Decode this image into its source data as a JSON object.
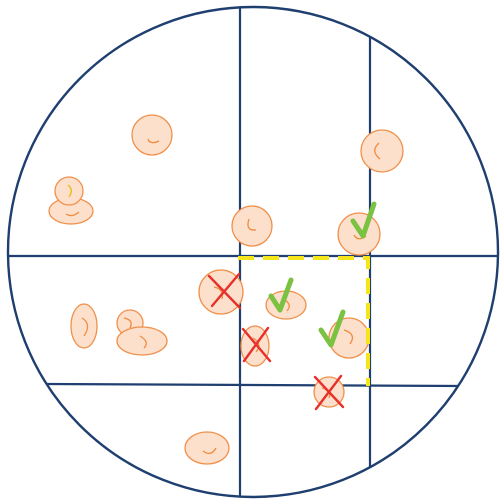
{
  "colors": {
    "background": "#ffffff",
    "field_line": "#1f3f70",
    "cell_fill": "#fce0cc",
    "cell_stroke": "#f0904a",
    "cell_mark": "#f28a3c",
    "cell_mark_alt": "#e8c020",
    "count_check": "#7cc242",
    "exclude_cross": "#e8302a",
    "counting_box": "#f5e61c"
  },
  "figure": {
    "subject": "hemocytometer-grid-under-microscope-field",
    "grid": {
      "vertical_lines": 2,
      "horizontal_lines": 2
    },
    "highlighted_square": {
      "border_style": "dashed",
      "color_key": "counting_box"
    },
    "cells": [
      {
        "id": "c1",
        "shape": "round",
        "status": "outside-square"
      },
      {
        "id": "c2",
        "shape": "round",
        "status": "outside-square"
      },
      {
        "id": "c3",
        "shape": "round",
        "status": "outside-square"
      },
      {
        "id": "c4",
        "shape": "round",
        "status": "outside-square"
      },
      {
        "id": "c5",
        "shape": "oval",
        "status": "outside-square"
      },
      {
        "id": "c6",
        "shape": "round",
        "status": "outside-square"
      },
      {
        "id": "c7",
        "shape": "round",
        "status": "counted"
      },
      {
        "id": "c8",
        "shape": "oval",
        "status": "outside-square"
      },
      {
        "id": "c9",
        "shape": "round",
        "status": "outside-square"
      },
      {
        "id": "c10",
        "shape": "oval",
        "status": "outside-square"
      },
      {
        "id": "c11",
        "shape": "round",
        "status": "not-counted"
      },
      {
        "id": "c12",
        "shape": "oval",
        "status": "counted"
      },
      {
        "id": "c13",
        "shape": "oval",
        "status": "not-counted"
      },
      {
        "id": "c14",
        "shape": "round",
        "status": "counted"
      },
      {
        "id": "c15",
        "shape": "round",
        "status": "not-counted"
      },
      {
        "id": "c16",
        "shape": "oval",
        "status": "outside-square"
      }
    ],
    "marks": {
      "check_icon": "check-icon",
      "cross_icon": "cross-icon"
    }
  }
}
